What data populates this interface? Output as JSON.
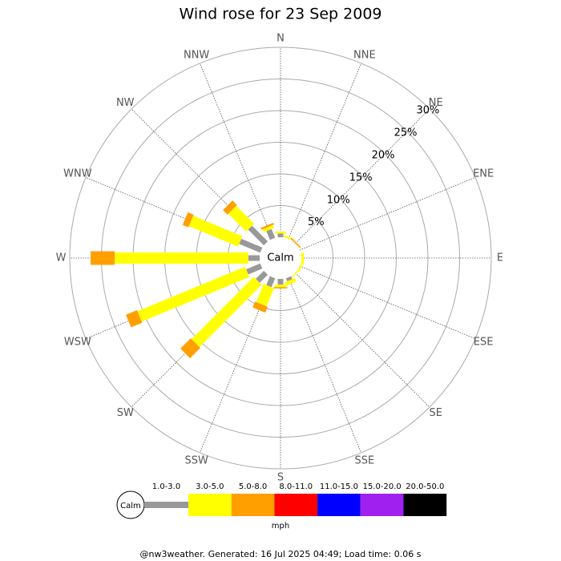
{
  "chart_data": {
    "type": "windrose",
    "title": "Wind rose for 23 Sep 2009",
    "categories": [
      "N",
      "NNE",
      "NE",
      "ENE",
      "E",
      "ESE",
      "SE",
      "SSE",
      "S",
      "SSW",
      "SW",
      "WSW",
      "W",
      "WNW",
      "NW",
      "NNW"
    ],
    "rlim": [
      0,
      30
    ],
    "rticks": [
      {
        "value": 5,
        "label": "5%"
      },
      {
        "value": 10,
        "label": "10%"
      },
      {
        "value": 15,
        "label": "15%"
      },
      {
        "value": 20,
        "label": "20%"
      },
      {
        "value": 25,
        "label": "25%"
      },
      {
        "value": 30,
        "label": "30%"
      }
    ],
    "center_label": "Calm",
    "series": [
      {
        "name": "1.0-3.0",
        "color": "#999999",
        "values": [
          0.6,
          0,
          0,
          0,
          0,
          0,
          0,
          0.5,
          0.9,
          1.5,
          1.8,
          2.4,
          1.8,
          3.6,
          3.5,
          1.5
        ]
      },
      {
        "name": "3.0-5.0",
        "color": "#ffff00",
        "values": [
          0.3,
          0.3,
          0,
          0,
          0.4,
          0.3,
          0.2,
          0.6,
          0.4,
          3.1,
          13.9,
          18.4,
          21.1,
          8.4,
          4.0,
          0.5
        ]
      },
      {
        "name": "5.0-8.0",
        "color": "#ff9f00",
        "values": [
          0,
          0,
          0.2,
          0,
          0,
          0,
          0,
          0,
          0.2,
          1.0,
          2.3,
          1.9,
          3.8,
          1.0,
          1.0,
          0.3
        ]
      },
      {
        "name": "8.0-11.0",
        "color": "#ff0000",
        "values": [
          0,
          0,
          0,
          0,
          0,
          0,
          0,
          0,
          0,
          0,
          0,
          0,
          0,
          0,
          0,
          0
        ]
      },
      {
        "name": "11.0-15.0",
        "color": "#0000ff",
        "values": [
          0,
          0,
          0,
          0,
          0,
          0,
          0,
          0,
          0,
          0,
          0,
          0,
          0,
          0,
          0,
          0
        ]
      },
      {
        "name": "15.0-20.0",
        "color": "#a020f0",
        "values": [
          0,
          0,
          0,
          0,
          0,
          0,
          0,
          0,
          0,
          0,
          0,
          0,
          0,
          0,
          0,
          0
        ]
      },
      {
        "name": "20.0-50.0",
        "color": "#000000",
        "values": [
          0,
          0,
          0,
          0,
          0,
          0,
          0,
          0,
          0,
          0,
          0,
          0,
          0,
          0,
          0,
          0
        ]
      }
    ],
    "legend_calm": "Calm",
    "units": "mph",
    "footer": "@nw3weather. Generated: 16 Jul 2025 04:49; Load time: 0.06 s"
  }
}
